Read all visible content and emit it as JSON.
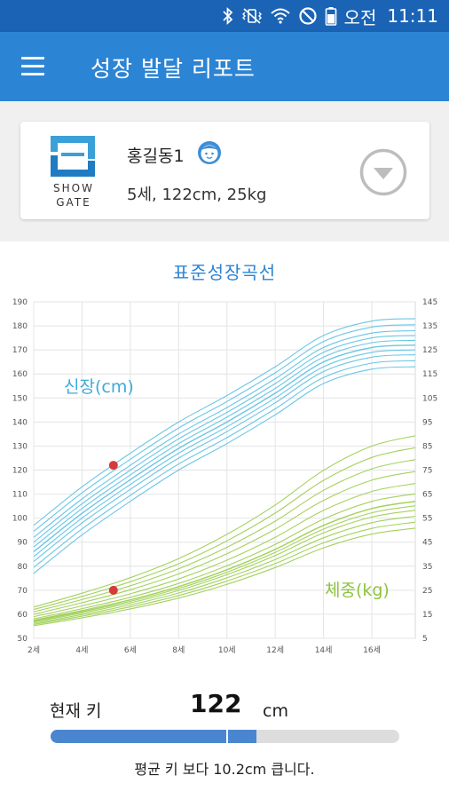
{
  "status_bar": {
    "ampm": "오전",
    "time": "11:11",
    "icons": [
      "bluetooth-icon",
      "vibrate-off-icon",
      "wifi-icon",
      "do-not-disturb-icon",
      "battery-icon"
    ]
  },
  "app_bar": {
    "title": "성장 발달 리포트",
    "menu_icon": "hamburger-menu-icon"
  },
  "profile": {
    "logo_text_top": "SHOW",
    "logo_text_bottom": "GATE",
    "name": "홍길동1",
    "avatar_icon": "child-face-icon",
    "stats": "5세, 122cm, 25kg",
    "dropdown_icon": "chevron-down-circle-icon"
  },
  "chart_section": {
    "title": "표준성장곡선"
  },
  "chart_data": {
    "type": "line",
    "x_tick_labels": [
      "2세",
      "4세",
      "6세",
      "8세",
      "10세",
      "12세",
      "14세",
      "16세"
    ],
    "x_ticks": [
      2,
      4,
      6,
      8,
      10,
      12,
      14,
      16
    ],
    "xlim": [
      2,
      17.8
    ],
    "left_axis": {
      "label": "신장(cm)",
      "ylim": [
        50,
        190
      ],
      "ticks": [
        50,
        60,
        70,
        80,
        90,
        100,
        110,
        120,
        130,
        140,
        150,
        160,
        170,
        180,
        190
      ]
    },
    "right_axis": {
      "label": "체중(kg)",
      "ylim": [
        5,
        145
      ],
      "ticks": [
        5,
        15,
        25,
        35,
        45,
        55,
        65,
        75,
        85,
        95,
        105,
        115,
        125,
        135,
        145
      ]
    },
    "grid": true,
    "height_series_color": "#5bc0e2",
    "weight_series_color": "#9acd4c",
    "point_color": "#d63a3a",
    "height_percentile_offsets": [
      -10,
      -7.5,
      -5,
      -3,
      -1,
      1,
      3,
      5,
      7.5,
      10
    ],
    "height_median": {
      "x": [
        2,
        4,
        6,
        8,
        10,
        12,
        14,
        16,
        17.8
      ],
      "y": [
        87,
        103,
        117,
        130,
        141,
        153,
        166,
        172,
        173
      ]
    },
    "weight_percentile_scales": [
      0.82,
      0.86,
      0.9,
      0.94,
      0.97,
      1.0,
      1.05,
      1.12,
      1.2,
      1.28,
      1.36,
      1.44
    ],
    "weight_median": {
      "x": [
        2,
        4,
        6,
        8,
        10,
        12,
        14,
        16,
        17.8
      ],
      "y": [
        12.5,
        16.5,
        21,
        26.5,
        33.5,
        42,
        52,
        59,
        62
      ]
    },
    "child_points": [
      {
        "series": "height",
        "x": 5.3,
        "y": 122
      },
      {
        "series": "weight",
        "x": 5.3,
        "y": 25
      }
    ]
  },
  "current_height": {
    "label": "현재 키",
    "value": "122",
    "unit": "cm",
    "progress_fraction": 0.59,
    "average_marker_fraction": 0.505,
    "comparison_text": "평균 키 보다 10.2cm 큽니다."
  }
}
